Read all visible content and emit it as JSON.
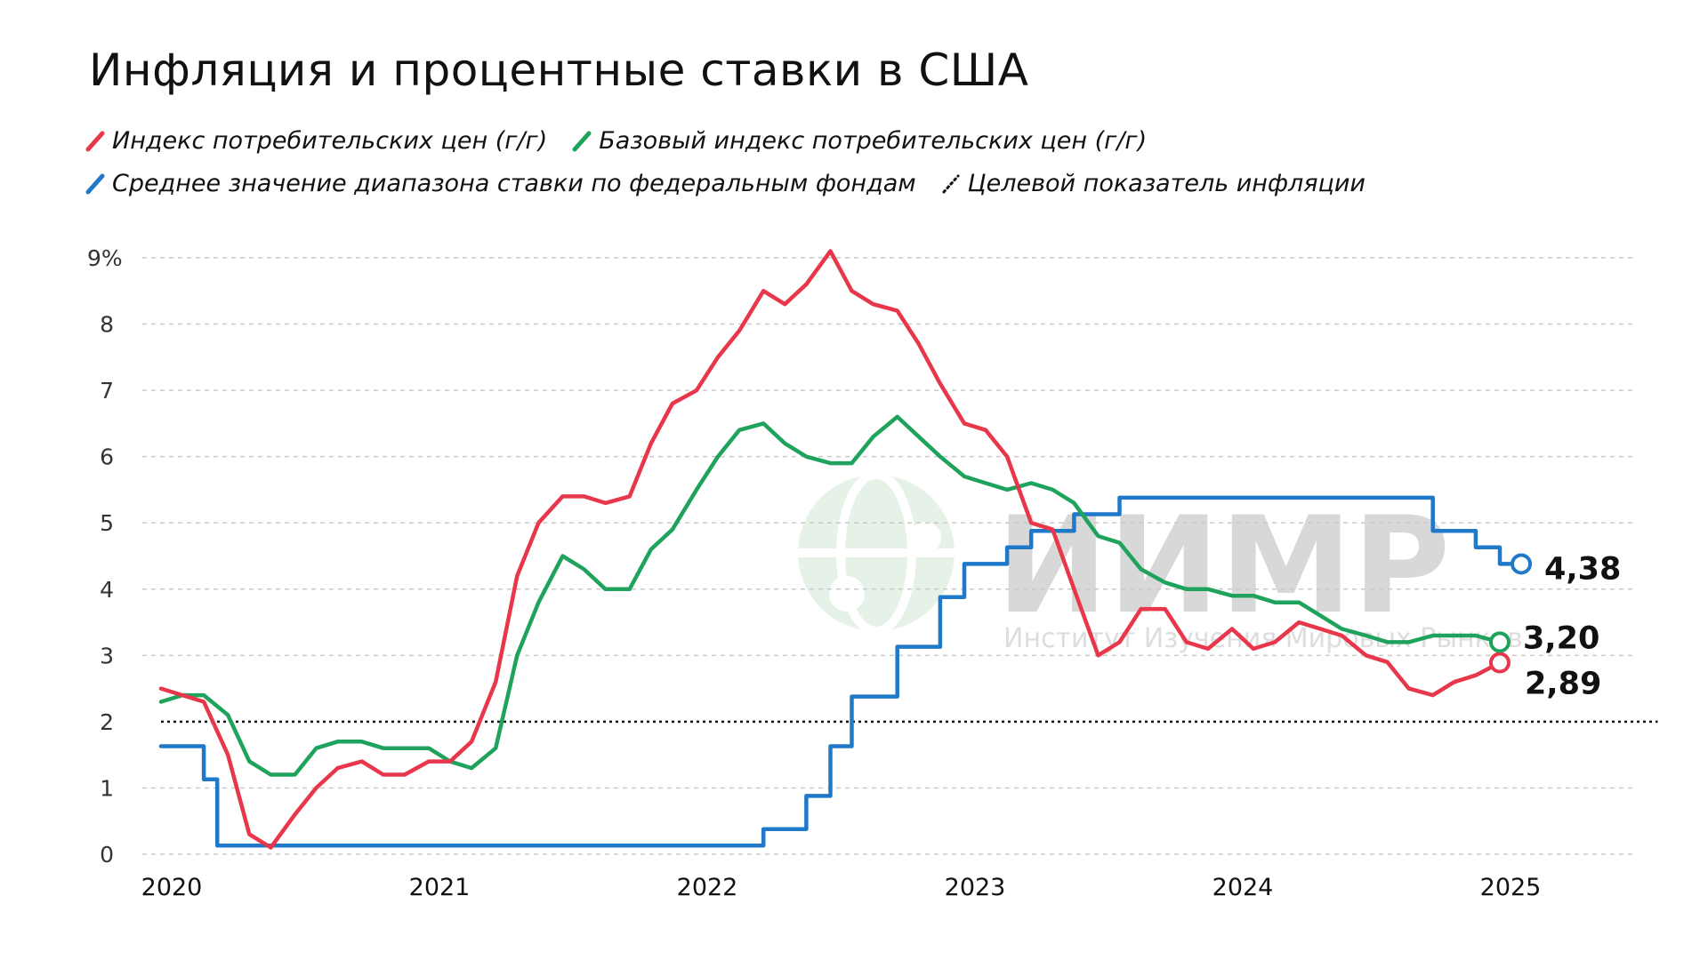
{
  "title": "Инфляция и процентные ставки в США",
  "watermark": {
    "logo_text": "ИИМР",
    "subtitle": "Институт Изучения Мировых Рынков"
  },
  "chart_data": {
    "type": "line",
    "title": "Инфляция и процентные ставки в США",
    "y_unit_label": "9%",
    "ylim": [
      0,
      9
    ],
    "y_ticks": [
      0,
      1,
      2,
      3,
      4,
      5,
      6,
      7,
      8,
      9
    ],
    "x_ticks": [
      2020,
      2021,
      2022,
      2023,
      2024,
      2025
    ],
    "xlim": [
      2020.0,
      2025.55
    ],
    "grid": "horizontal-dashed",
    "legend_position": "top-left",
    "series": [
      {
        "name": "Индекс потребительских цен (г/г)",
        "color": "#e8364a",
        "style": "solid",
        "end_label": "2,89",
        "points": [
          [
            2019.96,
            2.5
          ],
          [
            2020.04,
            2.4
          ],
          [
            2020.12,
            2.3
          ],
          [
            2020.21,
            1.5
          ],
          [
            2020.29,
            0.3
          ],
          [
            2020.37,
            0.1
          ],
          [
            2020.46,
            0.6
          ],
          [
            2020.54,
            1.0
          ],
          [
            2020.62,
            1.3
          ],
          [
            2020.71,
            1.4
          ],
          [
            2020.79,
            1.2
          ],
          [
            2020.87,
            1.2
          ],
          [
            2020.96,
            1.4
          ],
          [
            2021.04,
            1.4
          ],
          [
            2021.12,
            1.7
          ],
          [
            2021.21,
            2.6
          ],
          [
            2021.29,
            4.2
          ],
          [
            2021.37,
            5.0
          ],
          [
            2021.46,
            5.4
          ],
          [
            2021.54,
            5.4
          ],
          [
            2021.62,
            5.3
          ],
          [
            2021.71,
            5.4
          ],
          [
            2021.79,
            6.2
          ],
          [
            2021.87,
            6.8
          ],
          [
            2021.96,
            7.0
          ],
          [
            2022.04,
            7.5
          ],
          [
            2022.12,
            7.9
          ],
          [
            2022.21,
            8.5
          ],
          [
            2022.29,
            8.3
          ],
          [
            2022.37,
            8.6
          ],
          [
            2022.46,
            9.1
          ],
          [
            2022.54,
            8.5
          ],
          [
            2022.62,
            8.3
          ],
          [
            2022.71,
            8.2
          ],
          [
            2022.79,
            7.7
          ],
          [
            2022.87,
            7.1
          ],
          [
            2022.96,
            6.5
          ],
          [
            2023.04,
            6.4
          ],
          [
            2023.12,
            6.0
          ],
          [
            2023.21,
            5.0
          ],
          [
            2023.29,
            4.9
          ],
          [
            2023.37,
            4.0
          ],
          [
            2023.46,
            3.0
          ],
          [
            2023.54,
            3.2
          ],
          [
            2023.62,
            3.7
          ],
          [
            2023.71,
            3.7
          ],
          [
            2023.79,
            3.2
          ],
          [
            2023.87,
            3.1
          ],
          [
            2023.96,
            3.4
          ],
          [
            2024.04,
            3.1
          ],
          [
            2024.12,
            3.2
          ],
          [
            2024.21,
            3.5
          ],
          [
            2024.29,
            3.4
          ],
          [
            2024.37,
            3.3
          ],
          [
            2024.46,
            3.0
          ],
          [
            2024.54,
            2.9
          ],
          [
            2024.62,
            2.5
          ],
          [
            2024.71,
            2.4
          ],
          [
            2024.79,
            2.6
          ],
          [
            2024.87,
            2.7
          ],
          [
            2024.96,
            2.89
          ]
        ]
      },
      {
        "name": "Базовый индекс потребительских цен (г/г)",
        "color": "#1fa35c",
        "style": "solid",
        "end_label": "3,20",
        "points": [
          [
            2019.96,
            2.3
          ],
          [
            2020.04,
            2.4
          ],
          [
            2020.12,
            2.4
          ],
          [
            2020.21,
            2.1
          ],
          [
            2020.29,
            1.4
          ],
          [
            2020.37,
            1.2
          ],
          [
            2020.46,
            1.2
          ],
          [
            2020.54,
            1.6
          ],
          [
            2020.62,
            1.7
          ],
          [
            2020.71,
            1.7
          ],
          [
            2020.79,
            1.6
          ],
          [
            2020.87,
            1.6
          ],
          [
            2020.96,
            1.6
          ],
          [
            2021.04,
            1.4
          ],
          [
            2021.12,
            1.3
          ],
          [
            2021.21,
            1.6
          ],
          [
            2021.29,
            3.0
          ],
          [
            2021.37,
            3.8
          ],
          [
            2021.46,
            4.5
          ],
          [
            2021.54,
            4.3
          ],
          [
            2021.62,
            4.0
          ],
          [
            2021.71,
            4.0
          ],
          [
            2021.79,
            4.6
          ],
          [
            2021.87,
            4.9
          ],
          [
            2021.96,
            5.5
          ],
          [
            2022.04,
            6.0
          ],
          [
            2022.12,
            6.4
          ],
          [
            2022.21,
            6.5
          ],
          [
            2022.29,
            6.2
          ],
          [
            2022.37,
            6.0
          ],
          [
            2022.46,
            5.9
          ],
          [
            2022.54,
            5.9
          ],
          [
            2022.62,
            6.3
          ],
          [
            2022.71,
            6.6
          ],
          [
            2022.79,
            6.3
          ],
          [
            2022.87,
            6.0
          ],
          [
            2022.96,
            5.7
          ],
          [
            2023.04,
            5.6
          ],
          [
            2023.12,
            5.5
          ],
          [
            2023.21,
            5.6
          ],
          [
            2023.29,
            5.5
          ],
          [
            2023.37,
            5.3
          ],
          [
            2023.46,
            4.8
          ],
          [
            2023.54,
            4.7
          ],
          [
            2023.62,
            4.3
          ],
          [
            2023.71,
            4.1
          ],
          [
            2023.79,
            4.0
          ],
          [
            2023.87,
            4.0
          ],
          [
            2023.96,
            3.9
          ],
          [
            2024.04,
            3.9
          ],
          [
            2024.12,
            3.8
          ],
          [
            2024.21,
            3.8
          ],
          [
            2024.29,
            3.6
          ],
          [
            2024.37,
            3.4
          ],
          [
            2024.46,
            3.3
          ],
          [
            2024.54,
            3.2
          ],
          [
            2024.62,
            3.2
          ],
          [
            2024.71,
            3.3
          ],
          [
            2024.79,
            3.3
          ],
          [
            2024.87,
            3.3
          ],
          [
            2024.96,
            3.2
          ]
        ]
      },
      {
        "name": "Среднее значение диапазона ставки по федеральным фондам",
        "color": "#1f78c8",
        "style": "step",
        "end_label": "4,38",
        "points": [
          [
            2019.96,
            1.63
          ],
          [
            2020.12,
            1.63
          ],
          [
            2020.12,
            1.13
          ],
          [
            2020.17,
            1.13
          ],
          [
            2020.17,
            0.13
          ],
          [
            2022.21,
            0.13
          ],
          [
            2022.21,
            0.38
          ],
          [
            2022.37,
            0.38
          ],
          [
            2022.37,
            0.88
          ],
          [
            2022.46,
            0.88
          ],
          [
            2022.46,
            1.63
          ],
          [
            2022.54,
            1.63
          ],
          [
            2022.54,
            2.38
          ],
          [
            2022.71,
            2.38
          ],
          [
            2022.71,
            3.13
          ],
          [
            2022.87,
            3.13
          ],
          [
            2022.87,
            3.88
          ],
          [
            2022.96,
            3.88
          ],
          [
            2022.96,
            4.38
          ],
          [
            2023.12,
            4.38
          ],
          [
            2023.12,
            4.63
          ],
          [
            2023.21,
            4.63
          ],
          [
            2023.21,
            4.88
          ],
          [
            2023.37,
            4.88
          ],
          [
            2023.37,
            5.13
          ],
          [
            2023.54,
            5.13
          ],
          [
            2023.54,
            5.38
          ],
          [
            2024.71,
            5.38
          ],
          [
            2024.71,
            4.88
          ],
          [
            2024.87,
            4.88
          ],
          [
            2024.87,
            4.63
          ],
          [
            2024.96,
            4.63
          ],
          [
            2024.96,
            4.38
          ],
          [
            2025.04,
            4.38
          ]
        ]
      },
      {
        "name": "Целевой показатель инфляции",
        "color": "#111111",
        "style": "dotted",
        "points": [
          [
            2019.96,
            2.0
          ],
          [
            2025.55,
            2.0
          ]
        ]
      }
    ]
  }
}
